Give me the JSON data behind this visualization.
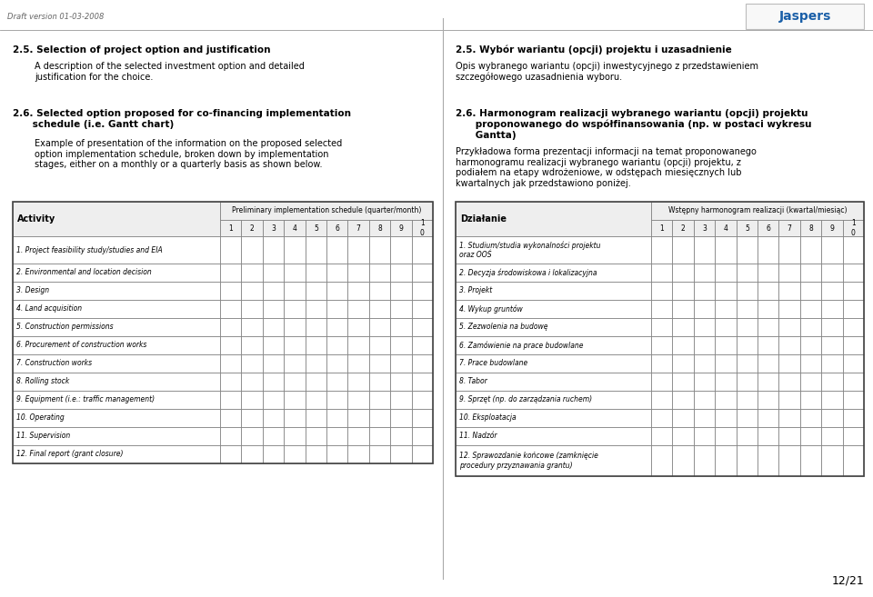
{
  "page_header": "Draft version 01-03-2008",
  "page_number": "12/21",
  "bg_color": "#ffffff",
  "s25_left_title": "2.5. Selection of project option and justification",
  "s25_left_body": "A description of the selected investment option and detailed\njustification for the choice.",
  "s25_right_title": "2.5. Wybór wariantu (opcji) projektu i uzasadnienie",
  "s25_right_body": "Opis wybranego wariantu (opcji) inwestycyjnego z przedstawieniem\nszczegółowego uzasadnienia wyboru.",
  "s26_left_title": "2.6. Selected option proposed for co-financing implementation\n      schedule (i.e. Gantt chart)",
  "s26_left_body": "Example of presentation of the information on the proposed selected\noption implementation schedule, broken down by implementation\nstages, either on a monthly or a quarterly basis as shown below.",
  "s26_right_title": "2.6. Harmonogram realizacji wybranego wariantu (opcji) projektu\n      proponowanego do współfinansowania (np. w postaci wykresu\n      Gantta)",
  "s26_right_body": "Przykładowa forma prezentacji informacji na temat proponowanego\nharmonogramu realizacji wybranego wariantu (opcji) projektu, z\npodiałem na etapy wdrożeniowe, w odstępach miesięcznych lub\nkwartalnych jak przedstawiono poniżej.",
  "left_table_header": "Preliminary implementation schedule (quarter/month)",
  "left_col1_label": "Activity",
  "right_table_header": "Wstępny harmonogram realizacji (kwartal/miesiąc)",
  "right_col1_label": "Działanie",
  "col_numbers": [
    "1",
    "2",
    "3",
    "4",
    "5",
    "6",
    "7",
    "8",
    "9",
    "1\n0"
  ],
  "left_activities": [
    "1. Project feasibility study/studies and EIA",
    "2. Environmental and location decision",
    "3. Design",
    "4. Land acquisition",
    "5. Construction permissions",
    "6. Procurement of construction works",
    "7. Construction works",
    "8. Rolling stock",
    "9. Equipment (i.e.: traffic management)",
    "10. Operating",
    "11. Supervision",
    "12. Final report (grant closure)"
  ],
  "right_activities": [
    "1. Studium/studia wykonalności projektu\noraz OOŚ",
    "2. Decyzja środowiskowa i lokalizacyjna",
    "3. Projekt",
    "4. Wykup gruntów",
    "5. Zezwolenia na budowę",
    "6. Zamówienie na prace budowlane",
    "7. Prace budowlane",
    "8. Tabor",
    "9. Sprzęt (np. do zarządzania ruchem)",
    "10. Eksploatacja",
    "11. Nadzór",
    "12. Sprawozdanie końcowe (zamknięcie\nprocedury przyznawania grantu)"
  ]
}
